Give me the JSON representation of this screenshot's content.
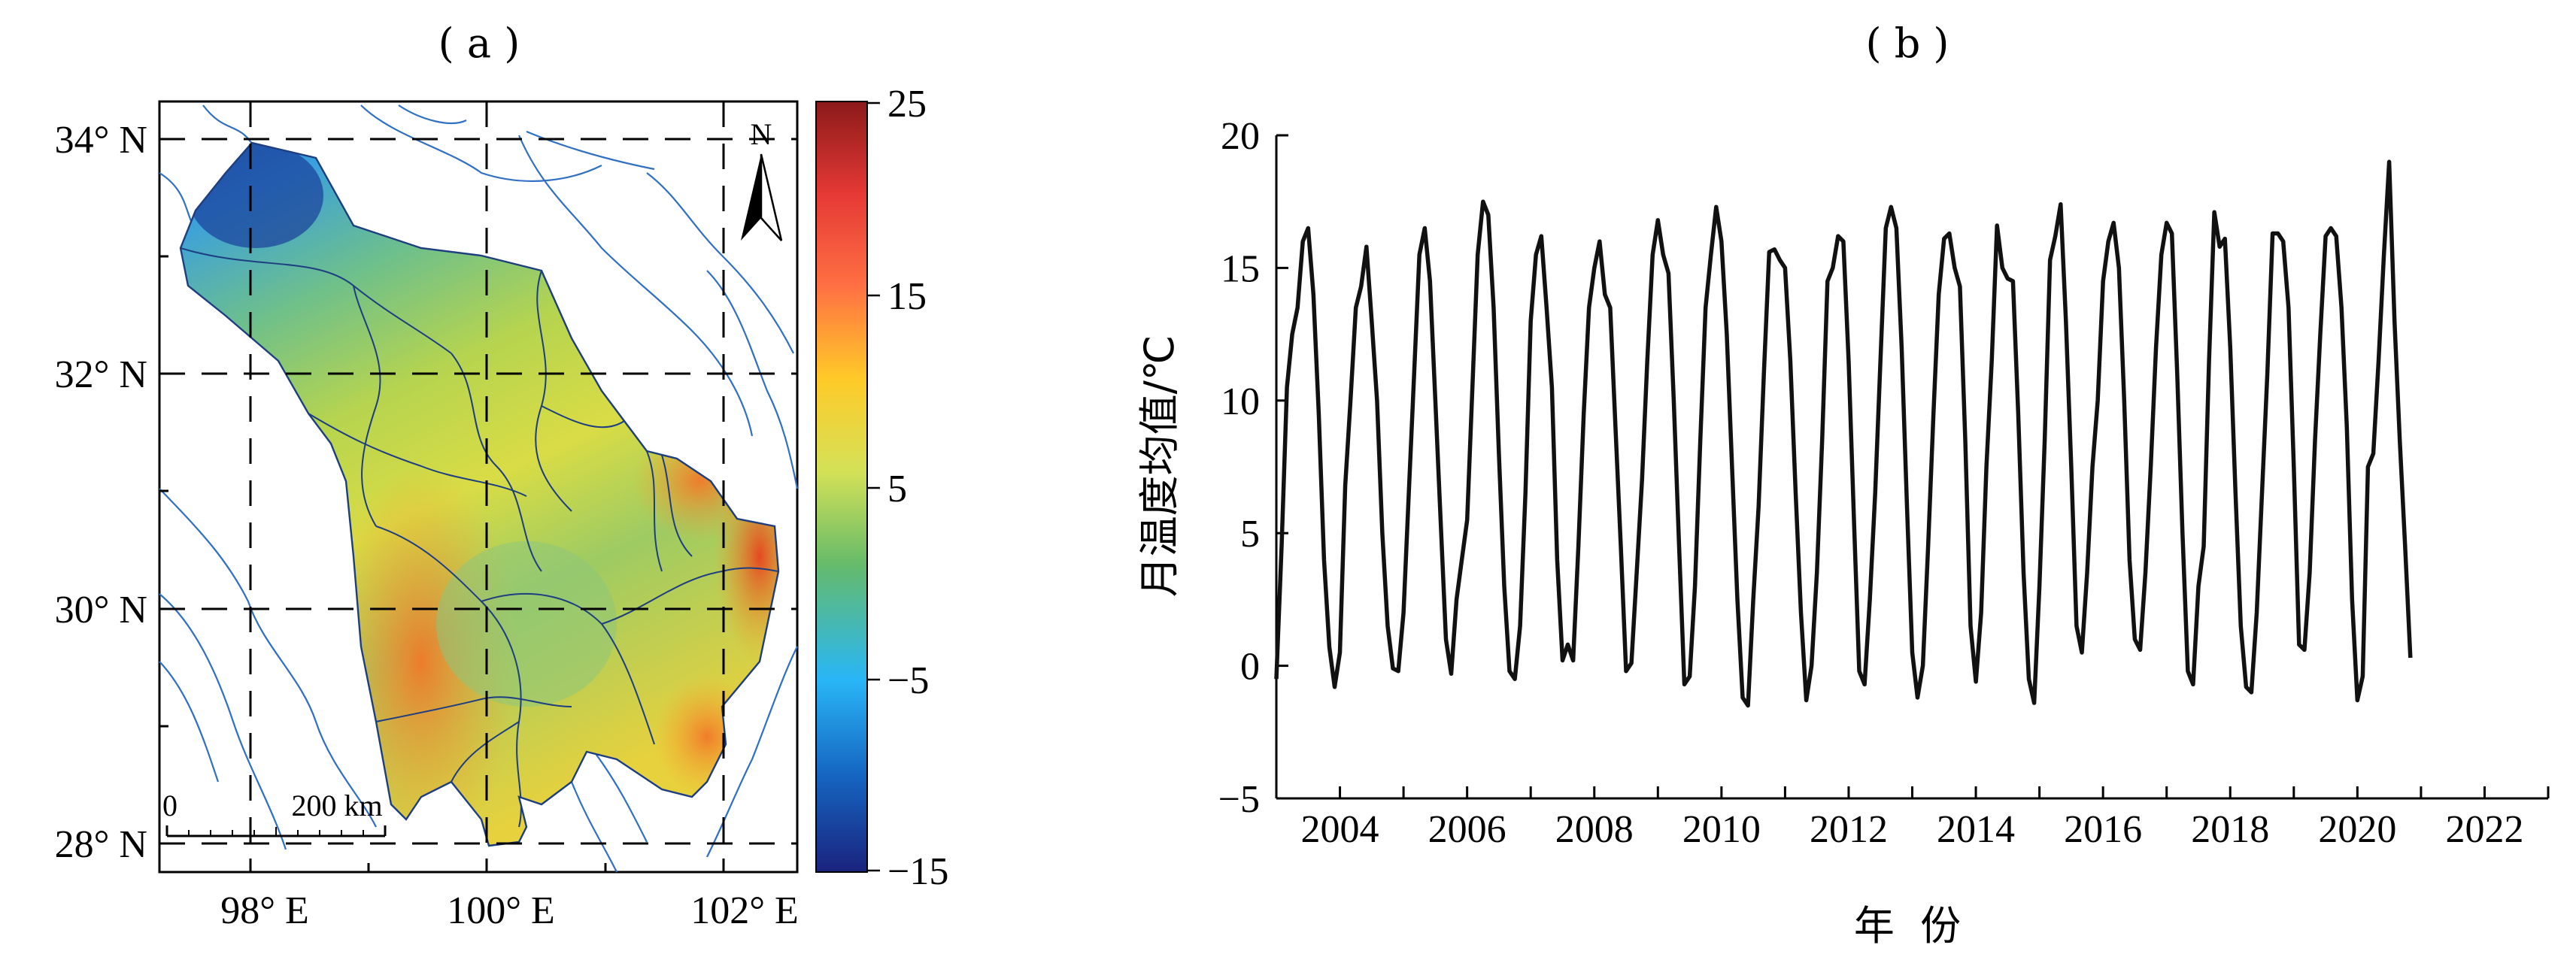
{
  "panels": {
    "a": {
      "label": "( a )"
    },
    "b": {
      "label": "( b )"
    }
  },
  "map": {
    "lat_ticks": [
      "34° N",
      "32° N",
      "30° N",
      "28° N"
    ],
    "lon_ticks": [
      "98° E",
      "100° E",
      "102° E"
    ],
    "north_label": "N",
    "scale_start": "0",
    "scale_end": "200 km",
    "colorbar": {
      "ticks": [
        "25",
        "15",
        "5",
        "−5",
        "−15"
      ],
      "min": -15,
      "max": 25,
      "colors": [
        "#1a237e",
        "#1565c0",
        "#29b6f6",
        "#66bb6a",
        "#d4e157",
        "#ffca28",
        "#ff7043",
        "#e53935",
        "#8b1a1a"
      ]
    }
  },
  "chart_data": {
    "type": "line",
    "title": "",
    "xlabel": "年  份",
    "ylabel": "月温度均值/℃",
    "ylim": [
      -5,
      20
    ],
    "yticks": [
      "20",
      "15",
      "10",
      "5",
      "0",
      "−5"
    ],
    "xlim": [
      2003.0,
      2023.0
    ],
    "xticks": [
      "2004",
      "2006",
      "2008",
      "2010",
      "2012",
      "2014",
      "2016",
      "2018",
      "2020",
      "2022"
    ],
    "grid": false,
    "series": [
      {
        "x_start": 2003.0,
        "x_step_months": 1,
        "values": [
          -0.5,
          4.5,
          10.5,
          12.5,
          13.5,
          16.0,
          16.5,
          14.0,
          9.5,
          4.0,
          0.7,
          -0.8,
          0.5,
          6.8,
          10.0,
          13.5,
          14.3,
          15.8,
          13.0,
          10.0,
          5.0,
          1.5,
          -0.1,
          -0.2,
          2.0,
          6.5,
          11.0,
          15.5,
          16.5,
          14.5,
          10.0,
          5.5,
          1.0,
          -0.3,
          2.5,
          4.0,
          5.5,
          10.5,
          15.5,
          17.5,
          17.0,
          13.5,
          8.0,
          3.0,
          -0.2,
          -0.5,
          1.5,
          6.5,
          13.0,
          15.5,
          16.2,
          13.5,
          10.5,
          4.0,
          0.2,
          0.8,
          0.2,
          4.5,
          9.5,
          13.5,
          15.0,
          16.0,
          14.0,
          13.5,
          9.0,
          4.5,
          -0.2,
          0.1,
          3.5,
          7.0,
          11.5,
          15.5,
          16.8,
          15.5,
          14.8,
          10.0,
          4.5,
          -0.7,
          -0.4,
          3.0,
          8.5,
          13.5,
          15.5,
          17.3,
          16.0,
          12.5,
          7.5,
          2.5,
          -1.2,
          -1.5,
          2.5,
          6.0,
          11.0,
          15.6,
          15.7,
          15.3,
          15.0,
          11.5,
          6.5,
          2.0,
          -1.3,
          0.0,
          3.5,
          8.5,
          14.5,
          15.0,
          16.2,
          16.0,
          11.5,
          5.5,
          -0.2,
          -0.7,
          2.5,
          6.5,
          11.5,
          16.5,
          17.3,
          16.5,
          12.0,
          6.0,
          0.5,
          -1.2,
          0.0,
          4.5,
          9.5,
          14.0,
          16.1,
          16.3,
          15.0,
          14.3,
          8.5,
          1.5,
          -0.6,
          2.0,
          7.5,
          11.5,
          16.6,
          15.0,
          14.6,
          14.5,
          9.5,
          3.5,
          -0.5,
          -1.4,
          3.0,
          8.5,
          15.3,
          16.2,
          17.4,
          13.0,
          7.5,
          1.5,
          0.5,
          3.5,
          7.5,
          10.0,
          14.5,
          16.0,
          16.7,
          15.0,
          10.0,
          4.0,
          1.0,
          0.6,
          3.5,
          7.5,
          12.0,
          15.5,
          16.7,
          16.3,
          11.0,
          5.0,
          -0.2,
          -0.7,
          3.0,
          4.5,
          11.5,
          17.1,
          15.8,
          16.1,
          12.0,
          6.5,
          1.5,
          -0.8,
          -1.0,
          2.0,
          6.5,
          11.0,
          16.3,
          16.3,
          16.0,
          13.5,
          7.5,
          0.8,
          0.6,
          3.5,
          8.5,
          12.5,
          16.2,
          16.5,
          16.2,
          13.5,
          9.0,
          2.5,
          -1.3,
          -0.4,
          7.5,
          8.0,
          11.5,
          15.5,
          19.0,
          13.0,
          8.5,
          4.5,
          0.3
        ]
      }
    ]
  }
}
